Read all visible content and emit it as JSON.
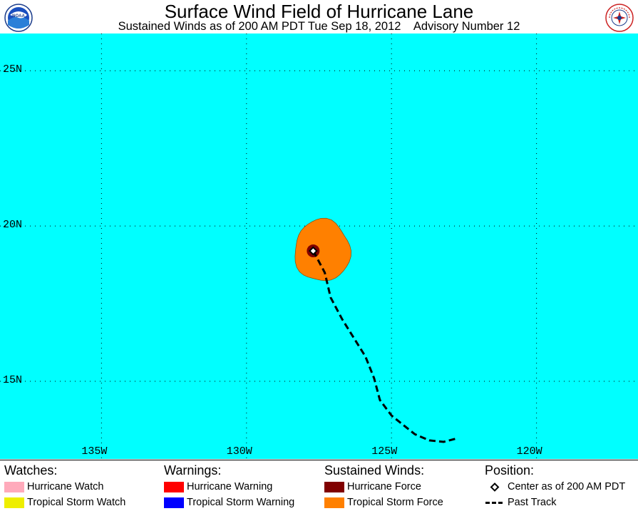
{
  "header": {
    "title": "Surface Wind Field of Hurricane Lane",
    "subtitle": "Sustained Winds as of 200 AM PDT Tue Sep 18, 2012    Advisory Number 12",
    "left_logo": "NOAA",
    "right_logo": "NATIONAL WEATHER SERVICE"
  },
  "map": {
    "background": "#00ffff",
    "grid": "dotted",
    "lat_labels": [
      "25N",
      "20N",
      "15N"
    ],
    "lon_labels": [
      "135W",
      "130W",
      "125W",
      "120W"
    ],
    "extent": {
      "lon": [
        -138.5,
        -116.5
      ],
      "lat": [
        12.5,
        26.2
      ]
    },
    "storm_center": {
      "lat": 19.2,
      "lon": -127.7
    },
    "tropical_storm_force_color": "#ff8000",
    "hurricane_force_color": "#800000",
    "past_track": [
      {
        "lat": 19.2,
        "lon": -127.7
      },
      {
        "lat": 18.5,
        "lon": -127.3
      },
      {
        "lat": 17.7,
        "lon": -127.1
      },
      {
        "lat": 17.0,
        "lon": -126.7
      },
      {
        "lat": 16.4,
        "lon": -126.3
      },
      {
        "lat": 15.8,
        "lon": -125.9
      },
      {
        "lat": 15.1,
        "lon": -125.6
      },
      {
        "lat": 14.4,
        "lon": -125.4
      },
      {
        "lat": 13.9,
        "lon": -125.0
      },
      {
        "lat": 13.6,
        "lon": -124.6
      },
      {
        "lat": 13.3,
        "lon": -124.2
      },
      {
        "lat": 13.1,
        "lon": -123.7
      },
      {
        "lat": 13.05,
        "lon": -123.2
      },
      {
        "lat": 13.15,
        "lon": -122.8
      }
    ]
  },
  "legend": {
    "watches": {
      "heading": "Watches:",
      "items": [
        {
          "label": "Hurricane Watch",
          "color": "#ffaabb"
        },
        {
          "label": "Tropical Storm Watch",
          "color": "#eeee00"
        }
      ]
    },
    "warnings": {
      "heading": "Warnings:",
      "items": [
        {
          "label": "Hurricane Warning",
          "color": "#ff0000"
        },
        {
          "label": "Tropical Storm Warning",
          "color": "#0000ff"
        }
      ]
    },
    "winds": {
      "heading": "Sustained Winds:",
      "items": [
        {
          "label": "Hurricane Force",
          "color": "#800000"
        },
        {
          "label": "Tropical Storm Force",
          "color": "#ff8000"
        }
      ]
    },
    "position": {
      "heading": "Position:",
      "center_label": "Center as of 200 AM PDT",
      "track_label": "Past Track"
    }
  }
}
